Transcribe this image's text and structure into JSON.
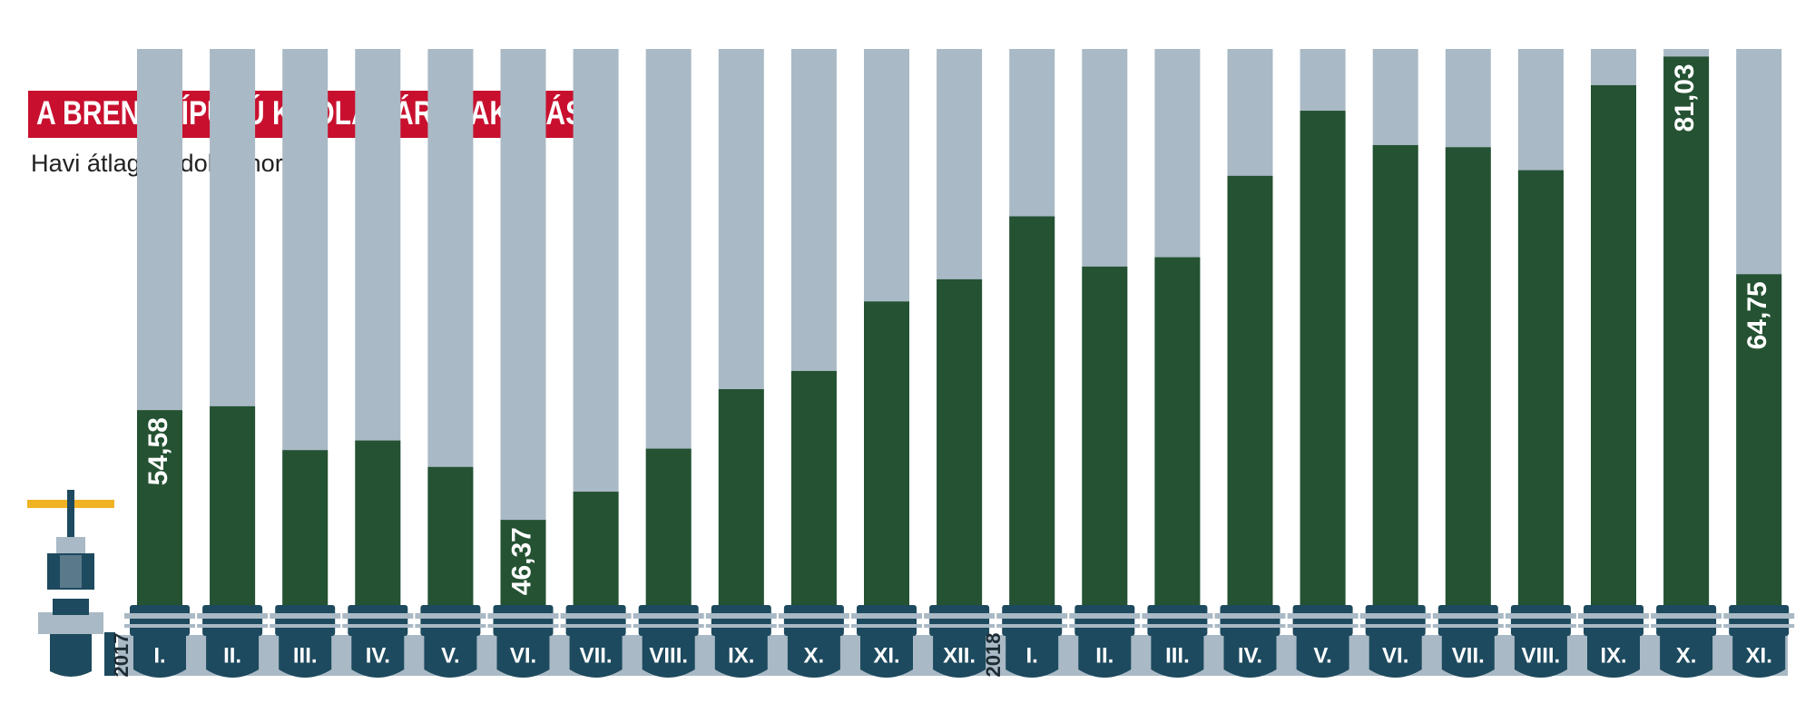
{
  "chart_data": {
    "type": "bar",
    "title": "A BRENT TÍPUSÚ KŐOLAJ ÁRALAKULÁSA",
    "subtitle": "Havi átlagok, dollár/hordó",
    "categories": [
      "I.",
      "II.",
      "III.",
      "IV.",
      "V.",
      "VI.",
      "VII.",
      "VIII.",
      "IX.",
      "X.",
      "XI.",
      "XII.",
      "I.",
      "II.",
      "III.",
      "IV.",
      "V.",
      "VI.",
      "VII.",
      "VIII.",
      "IX.",
      "X.",
      "XI."
    ],
    "years": [
      "2017",
      null,
      null,
      null,
      null,
      null,
      null,
      null,
      null,
      null,
      null,
      null,
      "2018",
      null,
      null,
      null,
      null,
      null,
      null,
      null,
      null,
      null,
      null
    ],
    "values": [
      54.58,
      54.87,
      51.59,
      52.31,
      50.33,
      46.37,
      48.48,
      51.7,
      56.15,
      57.51,
      62.71,
      64.37,
      69.08,
      65.32,
      66.02,
      72.11,
      76.98,
      74.41,
      74.25,
      72.53,
      78.89,
      81.03,
      64.75
    ],
    "value_labels": [
      "54,58",
      null,
      null,
      null,
      null,
      "46,37",
      null,
      null,
      null,
      null,
      null,
      null,
      null,
      null,
      null,
      null,
      null,
      null,
      null,
      null,
      null,
      "81,03",
      "64,75"
    ],
    "color": "#245232",
    "track_color": "#a9b9c5",
    "ylim": [
      40,
      81.6
    ]
  }
}
